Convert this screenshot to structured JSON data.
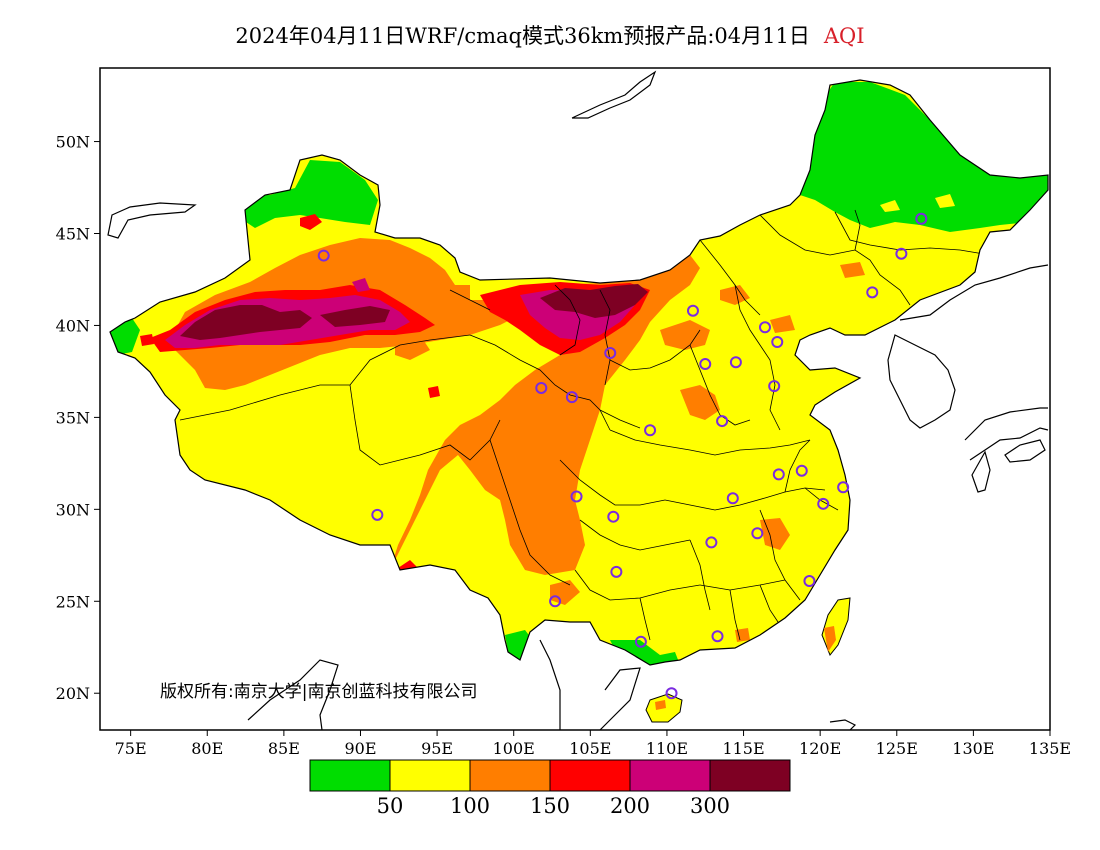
{
  "title": {
    "main": "2024年04月11日WRF/cmaq模式36km预报产品:04月11日",
    "variable": "AQI",
    "variable_color": "#d8202a"
  },
  "map": {
    "region": "China",
    "lon_range": [
      73,
      135
    ],
    "lat_range": [
      18,
      54
    ],
    "x_ticks": [
      "75E",
      "80E",
      "85E",
      "90E",
      "95E",
      "100E",
      "105E",
      "110E",
      "115E",
      "120E",
      "125E",
      "130E",
      "135E"
    ],
    "y_ticks": [
      "50N",
      "45N",
      "40N",
      "35N",
      "30N",
      "25N",
      "20N"
    ],
    "copyright": "版权所有:南京大学|南京创蓝科技有限公司",
    "station_marker_color": "#7a2be0",
    "stations": [
      [
        87.6,
        43.8
      ],
      [
        91.1,
        29.7
      ],
      [
        101.8,
        36.6
      ],
      [
        103.8,
        36.1
      ],
      [
        106.3,
        38.5
      ],
      [
        111.7,
        40.8
      ],
      [
        116.4,
        39.9
      ],
      [
        117.2,
        39.1
      ],
      [
        114.5,
        38.0
      ],
      [
        112.5,
        37.9
      ],
      [
        108.9,
        34.3
      ],
      [
        113.6,
        34.8
      ],
      [
        117.0,
        36.7
      ],
      [
        106.5,
        29.6
      ],
      [
        104.1,
        30.7
      ],
      [
        106.7,
        26.6
      ],
      [
        102.7,
        25.0
      ],
      [
        108.3,
        22.8
      ],
      [
        113.3,
        23.1
      ],
      [
        110.3,
        20.0
      ],
      [
        112.9,
        28.2
      ],
      [
        115.9,
        28.7
      ],
      [
        114.3,
        30.6
      ],
      [
        117.3,
        31.9
      ],
      [
        118.8,
        32.1
      ],
      [
        120.2,
        30.3
      ],
      [
        121.5,
        31.2
      ],
      [
        119.3,
        26.1
      ],
      [
        123.4,
        41.8
      ],
      [
        125.3,
        43.9
      ],
      [
        126.6,
        45.8
      ]
    ]
  },
  "legend": {
    "colors": [
      "#00dd00",
      "#ffff00",
      "#ff7e00",
      "#ff0000",
      "#cc0077",
      "#7e0023"
    ],
    "labels": [
      "50",
      "100",
      "150",
      "200",
      "300"
    ]
  }
}
